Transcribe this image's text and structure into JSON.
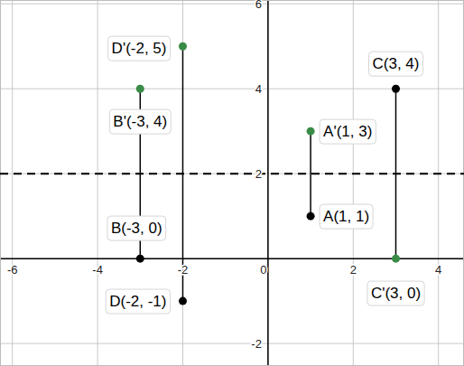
{
  "chart_data": {
    "type": "scatter",
    "xlim": [
      -6.29,
      4.6
    ],
    "ylim": [
      -2.53,
      6.09
    ],
    "xticks": [
      -6,
      -4,
      -2,
      0,
      2,
      4
    ],
    "yticks": [
      -2,
      2,
      4,
      6
    ],
    "grid": true,
    "reference_line": {
      "y": 2,
      "line_style": "dashed",
      "color": "#000000"
    },
    "series": [
      {
        "x": [
          1,
          1
        ],
        "values": [
          1,
          3
        ],
        "point_labels": [
          "A(1, 1)",
          "A'(1, 3)"
        ],
        "colors": [
          "#000000",
          "#388c46"
        ],
        "color": "#000000",
        "line_style": "solid",
        "marker": "circle"
      },
      {
        "x": [
          -3,
          -3
        ],
        "values": [
          0,
          4
        ],
        "point_labels": [
          "B(-3, 0)",
          "B'(-3, 4)"
        ],
        "colors": [
          "#000000",
          "#388c46"
        ],
        "color": "#000000",
        "line_style": "solid",
        "marker": "circle"
      },
      {
        "x": [
          3,
          3
        ],
        "values": [
          4,
          0
        ],
        "point_labels": [
          "C(3, 4)",
          "C'(3, 0)"
        ],
        "colors": [
          "#000000",
          "#388c46"
        ],
        "color": "#000000",
        "line_style": "solid",
        "marker": "circle"
      },
      {
        "x": [
          -2,
          -2
        ],
        "values": [
          -1,
          5
        ],
        "point_labels": [
          "D(-2, -1)",
          "D'(-2, 5)"
        ],
        "colors": [
          "#000000",
          "#388c46"
        ],
        "color": "#000000",
        "line_style": "solid",
        "marker": "circle"
      }
    ]
  }
}
